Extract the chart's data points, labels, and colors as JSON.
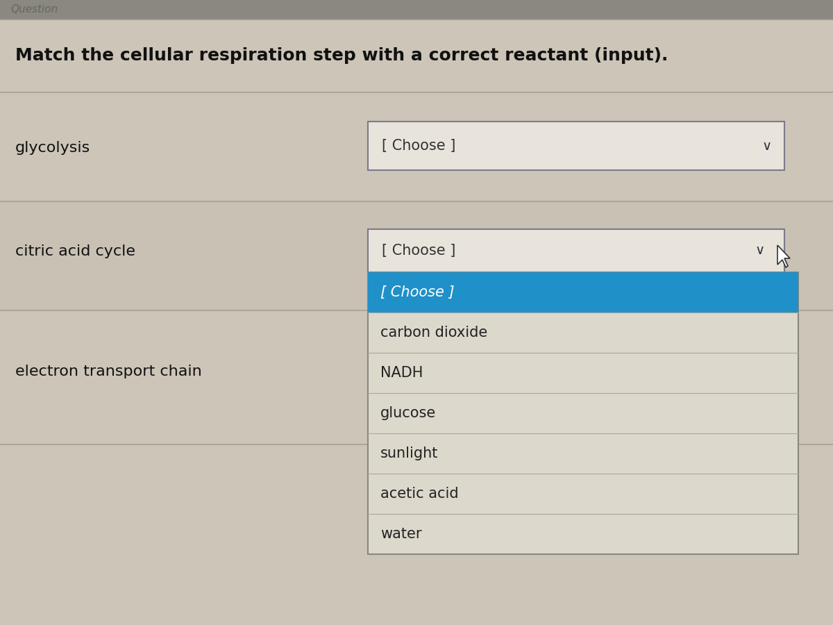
{
  "title": "Match the cellular respiration step with a correct reactant (input).",
  "bg_color": "#ccc5b8",
  "top_bar_color": "#8a8880",
  "top_bar_text": "Question",
  "question_bg": "#ccc5b8",
  "row_line_color": "#aaa89a",
  "steps": [
    "glycolysis",
    "citric acid cycle",
    "electron transport chain"
  ],
  "choose_box_bg": "#e8e4dc",
  "choose_box_border": "#7a7a8a",
  "choose_text": "[ Choose ]",
  "dropdown_bg": "#dcd8cc",
  "dropdown_border": "#888880",
  "dropdown_highlight_bg": "#2090c8",
  "dropdown_highlight_text": "#ffffff",
  "dropdown_text_color": "#222222",
  "dropdown_items": [
    "[ Choose ]",
    "carbon dioxide",
    "NADH",
    "glucose",
    "sunlight",
    "acetic acid",
    "water"
  ],
  "title_fontsize": 18,
  "step_fontsize": 16,
  "choose_fontsize": 15,
  "dropdown_fontsize": 15
}
